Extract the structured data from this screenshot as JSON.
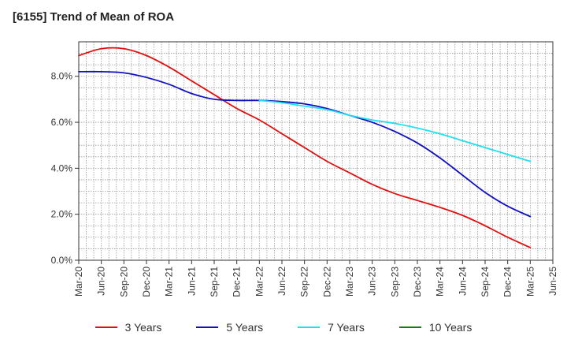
{
  "chart_data": {
    "type": "line",
    "title": "[6155]  Trend of Mean of ROA",
    "xlabel": "",
    "ylabel": "",
    "x": [
      "Mar-20",
      "Jun-20",
      "Sep-20",
      "Dec-20",
      "Mar-21",
      "Jun-21",
      "Sep-21",
      "Dec-21",
      "Mar-22",
      "Jun-22",
      "Sep-22",
      "Dec-22",
      "Mar-23",
      "Jun-23",
      "Sep-23",
      "Dec-23",
      "Mar-24",
      "Jun-24",
      "Sep-24",
      "Dec-24",
      "Mar-25",
      "Jun-25"
    ],
    "ylim": [
      0,
      9.5
    ],
    "yticks": [
      0,
      2,
      4,
      6,
      8
    ],
    "ytick_labels": [
      "0.0%",
      "2.0%",
      "4.0%",
      "6.0%",
      "8.0%"
    ],
    "grid": true,
    "legend_position": "bottom",
    "series": [
      {
        "name": "3 Years",
        "color": "#e01010",
        "values": [
          8.9,
          9.2,
          9.2,
          8.9,
          8.4,
          7.8,
          7.2,
          6.6,
          6.1,
          5.5,
          4.9,
          4.3,
          3.8,
          3.3,
          2.9,
          2.6,
          2.3,
          1.95,
          1.5,
          1.0,
          0.55,
          null
        ]
      },
      {
        "name": "5 Years",
        "color": "#1010c0",
        "values": [
          8.2,
          8.2,
          8.15,
          7.95,
          7.65,
          7.25,
          7.0,
          6.95,
          6.95,
          6.9,
          6.8,
          6.6,
          6.3,
          6.0,
          5.6,
          5.1,
          4.45,
          3.7,
          2.95,
          2.35,
          1.9,
          null
        ]
      },
      {
        "name": "7 Years",
        "color": "#20e0f0",
        "values": [
          null,
          null,
          null,
          null,
          null,
          null,
          null,
          null,
          6.95,
          6.85,
          6.7,
          6.55,
          6.3,
          6.1,
          5.95,
          5.75,
          5.5,
          5.2,
          4.9,
          4.6,
          4.3,
          null
        ]
      },
      {
        "name": "10 Years",
        "color": "#108010",
        "values": [
          null,
          null,
          null,
          null,
          null,
          null,
          null,
          null,
          null,
          null,
          null,
          null,
          null,
          null,
          null,
          null,
          null,
          null,
          null,
          null,
          null,
          null
        ]
      }
    ]
  }
}
